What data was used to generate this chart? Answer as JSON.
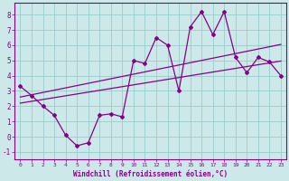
{
  "xlabel": "Windchill (Refroidissement éolien,°C)",
  "bg_color": "#cce8e8",
  "line_color": "#880088",
  "grid_color": "#99cccc",
  "x_data": [
    0,
    1,
    2,
    3,
    4,
    5,
    6,
    7,
    8,
    9,
    10,
    11,
    12,
    13,
    14,
    15,
    16,
    17,
    18,
    19,
    20,
    21,
    22,
    23
  ],
  "y_main": [
    3.3,
    2.7,
    2.0,
    1.4,
    0.1,
    -0.6,
    -0.4,
    1.4,
    1.5,
    1.3,
    5.0,
    4.8,
    6.5,
    6.0,
    3.0,
    7.2,
    8.2,
    6.7,
    8.2,
    5.2,
    4.2,
    5.2,
    4.9,
    4.0
  ],
  "y_upper": [
    2.6,
    2.75,
    2.9,
    3.05,
    3.2,
    3.35,
    3.5,
    3.65,
    3.8,
    3.95,
    4.1,
    4.25,
    4.4,
    4.55,
    4.7,
    4.85,
    5.0,
    5.15,
    5.3,
    5.45,
    5.6,
    5.75,
    5.9,
    6.05
  ],
  "y_lower": [
    2.2,
    2.32,
    2.44,
    2.56,
    2.68,
    2.8,
    2.92,
    3.04,
    3.16,
    3.28,
    3.4,
    3.52,
    3.64,
    3.76,
    3.88,
    4.0,
    4.12,
    4.24,
    4.36,
    4.48,
    4.6,
    4.72,
    4.84,
    4.96
  ],
  "ylim": [
    -1.5,
    8.8
  ],
  "xlim": [
    -0.5,
    23.5
  ],
  "yticks": [
    -1,
    0,
    1,
    2,
    3,
    4,
    5,
    6,
    7,
    8
  ],
  "xticks": [
    0,
    1,
    2,
    3,
    4,
    5,
    6,
    7,
    8,
    9,
    10,
    11,
    12,
    13,
    14,
    15,
    16,
    17,
    18,
    19,
    20,
    21,
    22,
    23
  ]
}
